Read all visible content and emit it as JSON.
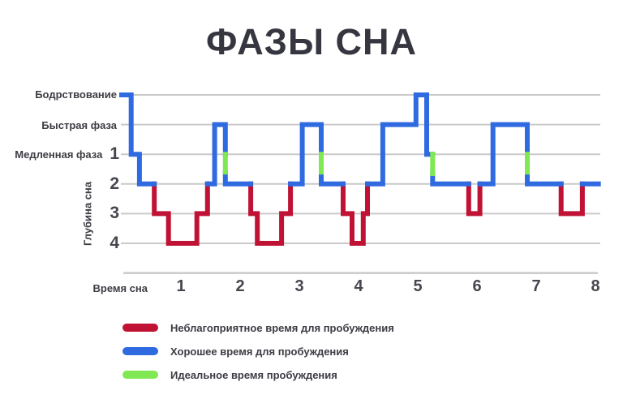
{
  "title": "ФАЗЫ СНА",
  "colors": {
    "red": "#c01234",
    "blue": "#2f6ae0",
    "green": "#80e852",
    "grid": "#cacaca",
    "text": "#3c3c43",
    "muted": "#46464e"
  },
  "y_axis": {
    "axis_title": "Глубина сна",
    "labels": [
      {
        "text": "Бодрствование",
        "number": "",
        "row": 0
      },
      {
        "text": "Быстрая фаза",
        "number": "",
        "row": 1
      },
      {
        "text": "Медленная фаза",
        "number": "1",
        "row": 2
      },
      {
        "text": "",
        "number": "2",
        "row": 3
      },
      {
        "text": "",
        "number": "3",
        "row": 4
      },
      {
        "text": "",
        "number": "4",
        "row": 5
      }
    ]
  },
  "x_axis": {
    "title": "Время сна",
    "ticks": [
      "1",
      "2",
      "3",
      "4",
      "5",
      "6",
      "7",
      "8"
    ]
  },
  "legend": [
    {
      "color": "red",
      "label": "Неблагоприятное время для пробуждения"
    },
    {
      "color": "blue",
      "label": "Хорошее время для пробуждения"
    },
    {
      "color": "green",
      "label": "Идеальное время пробуждения"
    }
  ],
  "chart_data": {
    "type": "line",
    "subtype": "step",
    "title": "ФАЗЫ СНА",
    "xlabel": "Время сна",
    "ylabel": "Глубина сна",
    "x_range": [
      0,
      8
    ],
    "x_ticks": [
      1,
      2,
      3,
      4,
      5,
      6,
      7,
      8
    ],
    "grid": true,
    "legend_position": "bottom-left",
    "levels": [
      "Бодрствование",
      "Быстрая фаза",
      "Медленная фаза (1)",
      "2",
      "3",
      "4"
    ],
    "level_rows": [
      0,
      1,
      2,
      3,
      4,
      5
    ],
    "series_note": "points are [hours_of_sleep, depth_row]; row 0 = awake, 5 = deepest sleep",
    "segments": [
      {
        "color": "blue",
        "points": [
          [
            0,
            0
          ],
          [
            0.16,
            0
          ],
          [
            0.16,
            2
          ],
          [
            0.3,
            2
          ],
          [
            0.3,
            3
          ],
          [
            0.55,
            3
          ]
        ]
      },
      {
        "color": "red",
        "points": [
          [
            0.55,
            3
          ],
          [
            0.55,
            4
          ],
          [
            0.79,
            4
          ],
          [
            0.79,
            5
          ],
          [
            1.27,
            5
          ],
          [
            1.27,
            4
          ],
          [
            1.45,
            4
          ],
          [
            1.45,
            3
          ]
        ]
      },
      {
        "color": "blue",
        "points": [
          [
            1.45,
            3
          ],
          [
            1.57,
            3
          ],
          [
            1.57,
            1
          ],
          [
            1.75,
            1
          ],
          [
            1.75,
            2
          ]
        ]
      },
      {
        "color": "green",
        "points": [
          [
            1.75,
            2
          ],
          [
            1.75,
            2.6
          ]
        ]
      },
      {
        "color": "blue",
        "points": [
          [
            1.75,
            2.6
          ],
          [
            1.75,
            3
          ],
          [
            2.18,
            3
          ]
        ]
      },
      {
        "color": "red",
        "points": [
          [
            2.18,
            3
          ],
          [
            2.18,
            4
          ],
          [
            2.29,
            4
          ],
          [
            2.29,
            5
          ],
          [
            2.7,
            5
          ],
          [
            2.7,
            4
          ],
          [
            2.85,
            4
          ],
          [
            2.85,
            3
          ]
        ]
      },
      {
        "color": "blue",
        "points": [
          [
            2.85,
            3
          ],
          [
            3.05,
            3
          ],
          [
            3.05,
            1
          ],
          [
            3.37,
            1
          ],
          [
            3.37,
            2
          ]
        ]
      },
      {
        "color": "green",
        "points": [
          [
            3.37,
            2
          ],
          [
            3.37,
            2.6
          ]
        ]
      },
      {
        "color": "blue",
        "points": [
          [
            3.37,
            2.6
          ],
          [
            3.37,
            3
          ],
          [
            3.74,
            3
          ]
        ]
      },
      {
        "color": "red",
        "points": [
          [
            3.74,
            3
          ],
          [
            3.74,
            4
          ],
          [
            3.89,
            4
          ],
          [
            3.89,
            5
          ],
          [
            4.08,
            5
          ],
          [
            4.08,
            4
          ],
          [
            4.15,
            4
          ],
          [
            4.15,
            3
          ]
        ]
      },
      {
        "color": "blue",
        "points": [
          [
            4.15,
            3
          ],
          [
            4.41,
            3
          ],
          [
            4.41,
            1
          ],
          [
            4.97,
            1
          ],
          [
            4.97,
            0
          ],
          [
            5.15,
            0
          ],
          [
            5.15,
            2
          ],
          [
            5.25,
            2
          ]
        ]
      },
      {
        "color": "green",
        "points": [
          [
            5.25,
            2
          ],
          [
            5.25,
            2.65
          ]
        ]
      },
      {
        "color": "blue",
        "points": [
          [
            5.25,
            2.65
          ],
          [
            5.25,
            3
          ],
          [
            5.86,
            3
          ]
        ]
      },
      {
        "color": "red",
        "points": [
          [
            5.86,
            3
          ],
          [
            5.86,
            4
          ],
          [
            6.05,
            4
          ],
          [
            6.05,
            3
          ]
        ]
      },
      {
        "color": "blue",
        "points": [
          [
            6.05,
            3
          ],
          [
            6.27,
            3
          ],
          [
            6.27,
            1
          ],
          [
            6.85,
            1
          ],
          [
            6.85,
            2
          ]
        ]
      },
      {
        "color": "green",
        "points": [
          [
            6.85,
            2
          ],
          [
            6.85,
            2.6
          ]
        ]
      },
      {
        "color": "blue",
        "points": [
          [
            6.85,
            2.6
          ],
          [
            6.85,
            3
          ],
          [
            7.42,
            3
          ]
        ]
      },
      {
        "color": "red",
        "points": [
          [
            7.42,
            3
          ],
          [
            7.42,
            4
          ],
          [
            7.78,
            4
          ],
          [
            7.78,
            3
          ]
        ]
      },
      {
        "color": "blue",
        "points": [
          [
            7.78,
            3
          ],
          [
            8.05,
            3
          ]
        ]
      }
    ]
  }
}
